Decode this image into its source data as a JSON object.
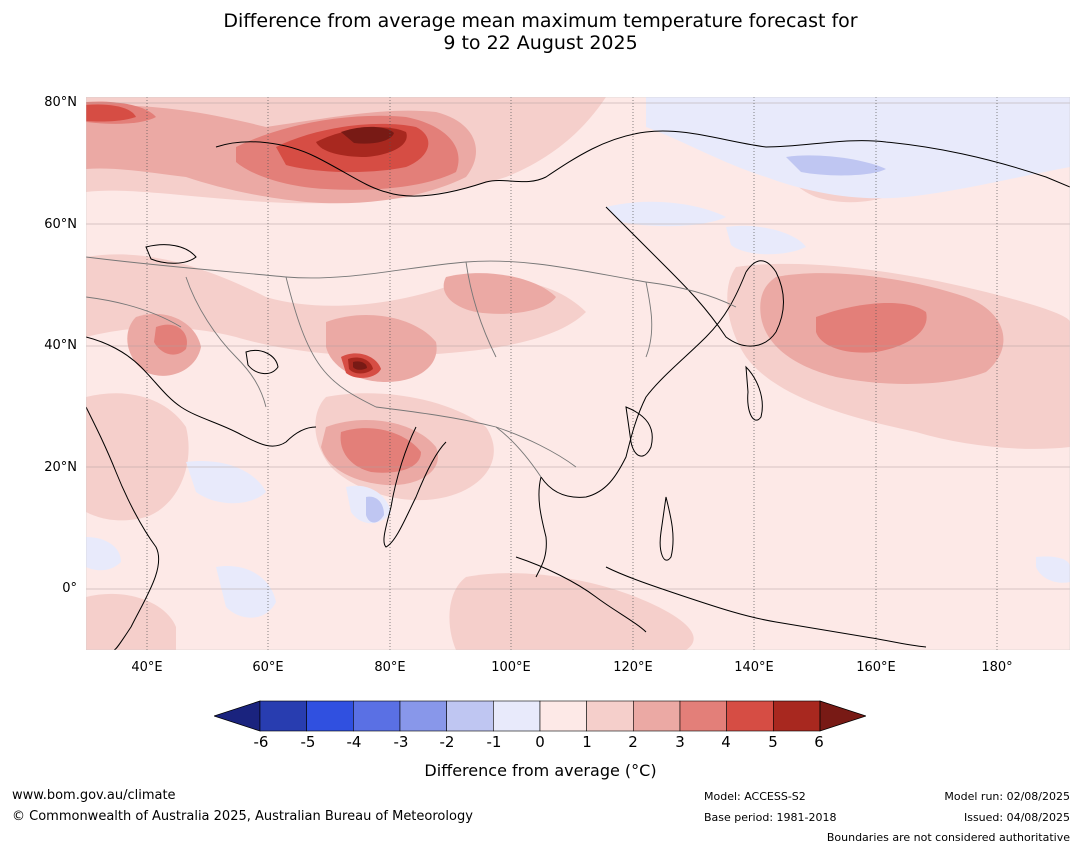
{
  "title": {
    "line1": "Difference from average mean maximum temperature forecast for",
    "line2": "9 to 22 August 2025"
  },
  "map": {
    "lat_labels": [
      "80°N",
      "60°N",
      "40°N",
      "20°N",
      "0°"
    ],
    "lon_labels": [
      "40°E",
      "60°E",
      "80°E",
      "100°E",
      "120°E",
      "140°E",
      "160°E",
      "180°"
    ],
    "extent": {
      "lon_min": 30,
      "lon_max": 192,
      "lat_min": -10,
      "lat_max": 81
    },
    "projection": "plate carree",
    "gridlines": "dotted"
  },
  "colorbar": {
    "title": "Difference from average (°C)",
    "ticks": [
      "-6",
      "-5",
      "-4",
      "-3",
      "-2",
      "-1",
      "0",
      "1",
      "2",
      "3",
      "4",
      "5",
      "6"
    ],
    "colors": [
      "#1a237e",
      "#283db0",
      "#3050e0",
      "#5a70e4",
      "#8897ea",
      "#bfc6f2",
      "#e8eafb",
      "#fde9e7",
      "#f5cfcb",
      "#eba9a4",
      "#e37f79",
      "#d64d44",
      "#a8281f",
      "#781a15"
    ],
    "extend": "both"
  },
  "footer": {
    "website": "www.bom.gov.au/climate",
    "copyright": "© Commonwealth of Australia 2025, Australian Bureau of Meteorology",
    "model": "Model: ACCESS-S2",
    "base_period": "Base period: 1981-2018",
    "model_run": "Model run: 02/08/2025",
    "issued": "Issued: 04/08/2025",
    "disclaimer": "Boundaries are not considered authoritative"
  }
}
